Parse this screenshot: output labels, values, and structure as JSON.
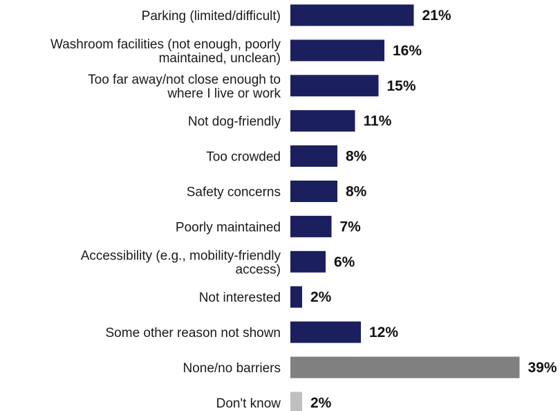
{
  "chart_data": {
    "type": "bar",
    "orientation": "horizontal",
    "categories": [
      [
        "Parking (limited/difficult)"
      ],
      [
        "Washroom facilities (not enough, poorly",
        "maintained, unclean)"
      ],
      [
        "Too far away/not close enough to",
        "where I live or work"
      ],
      [
        "Not dog-friendly"
      ],
      [
        "Too crowded"
      ],
      [
        "Safety concerns"
      ],
      [
        "Poorly maintained"
      ],
      [
        "Accessibility (e.g., mobility-friendly",
        "access)"
      ],
      [
        "Not interested"
      ],
      [
        "Some other reason not shown"
      ],
      [
        "None/no barriers"
      ],
      [
        "Don't know"
      ]
    ],
    "values": [
      21,
      16,
      15,
      11,
      8,
      8,
      7,
      6,
      2,
      12,
      39,
      2
    ],
    "value_labels": [
      "21%",
      "16%",
      "15%",
      "11%",
      "8%",
      "8%",
      "7%",
      "6%",
      "2%",
      "12%",
      "39%",
      "2%"
    ],
    "bar_colors": [
      "#1b1f5e",
      "#1b1f5e",
      "#1b1f5e",
      "#1b1f5e",
      "#1b1f5e",
      "#1b1f5e",
      "#1b1f5e",
      "#1b1f5e",
      "#1b1f5e",
      "#1b1f5e",
      "#808080",
      "#bfbfbf"
    ],
    "title": "",
    "xlabel": "",
    "ylabel": "",
    "xlim": [
      0,
      39
    ],
    "grid": false,
    "legend": "none"
  }
}
